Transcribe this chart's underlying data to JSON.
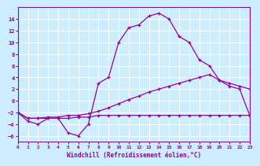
{
  "xlabel": "Windchill (Refroidissement éolien,°C)",
  "background_color": "#cceeff",
  "grid_color": "#ffffff",
  "line_color": "#990099",
  "xlim": [
    0,
    23
  ],
  "ylim": [
    -7,
    16
  ],
  "x_ticks": [
    0,
    1,
    2,
    3,
    4,
    5,
    6,
    7,
    8,
    9,
    10,
    11,
    12,
    13,
    14,
    15,
    16,
    17,
    18,
    19,
    20,
    21,
    22,
    23
  ],
  "y_ticks": [
    -6,
    -4,
    -2,
    0,
    2,
    4,
    6,
    8,
    10,
    12,
    14
  ],
  "curve1_x": [
    0,
    1,
    2,
    3,
    4,
    5,
    6,
    7,
    8,
    9,
    10,
    11,
    12,
    13,
    14,
    15,
    16,
    17,
    18,
    19,
    20,
    21,
    22,
    23
  ],
  "curve1_y": [
    -2,
    -3.5,
    -4,
    -3,
    -3,
    -5.5,
    -6,
    -4,
    3,
    4,
    10,
    12.5,
    13,
    14.5,
    15,
    14,
    11,
    10,
    7,
    6,
    3.5,
    2.5,
    2,
    -2.5
  ],
  "curve2_x": [
    0,
    1,
    2,
    3,
    4,
    5,
    6,
    7,
    8,
    9,
    10,
    11,
    12,
    13,
    14,
    15,
    16,
    17,
    18,
    19,
    20,
    21,
    22,
    23
  ],
  "curve2_y": [
    -2,
    -3,
    -3,
    -3,
    -3,
    -3,
    -2.8,
    -2.8,
    -2.5,
    -2.5,
    -2.5,
    -2.5,
    -2.5,
    -2.5,
    -2.5,
    -2.5,
    -2.5,
    -2.5,
    -2.5,
    -2.5,
    -2.5,
    -2.5,
    -2.5,
    -2.5
  ],
  "curve3_x": [
    0,
    1,
    2,
    3,
    4,
    5,
    6,
    7,
    8,
    9,
    10,
    11,
    12,
    13,
    14,
    15,
    16,
    17,
    18,
    19,
    20,
    21,
    22,
    23
  ],
  "curve3_y": [
    -2,
    -3,
    -3,
    -2.8,
    -2.8,
    -2.5,
    -2.5,
    -2.2,
    -1.8,
    -1.2,
    -0.5,
    0.2,
    0.8,
    1.5,
    2,
    2.5,
    3,
    3.5,
    4,
    4.5,
    3.5,
    3,
    2.5,
    2
  ]
}
